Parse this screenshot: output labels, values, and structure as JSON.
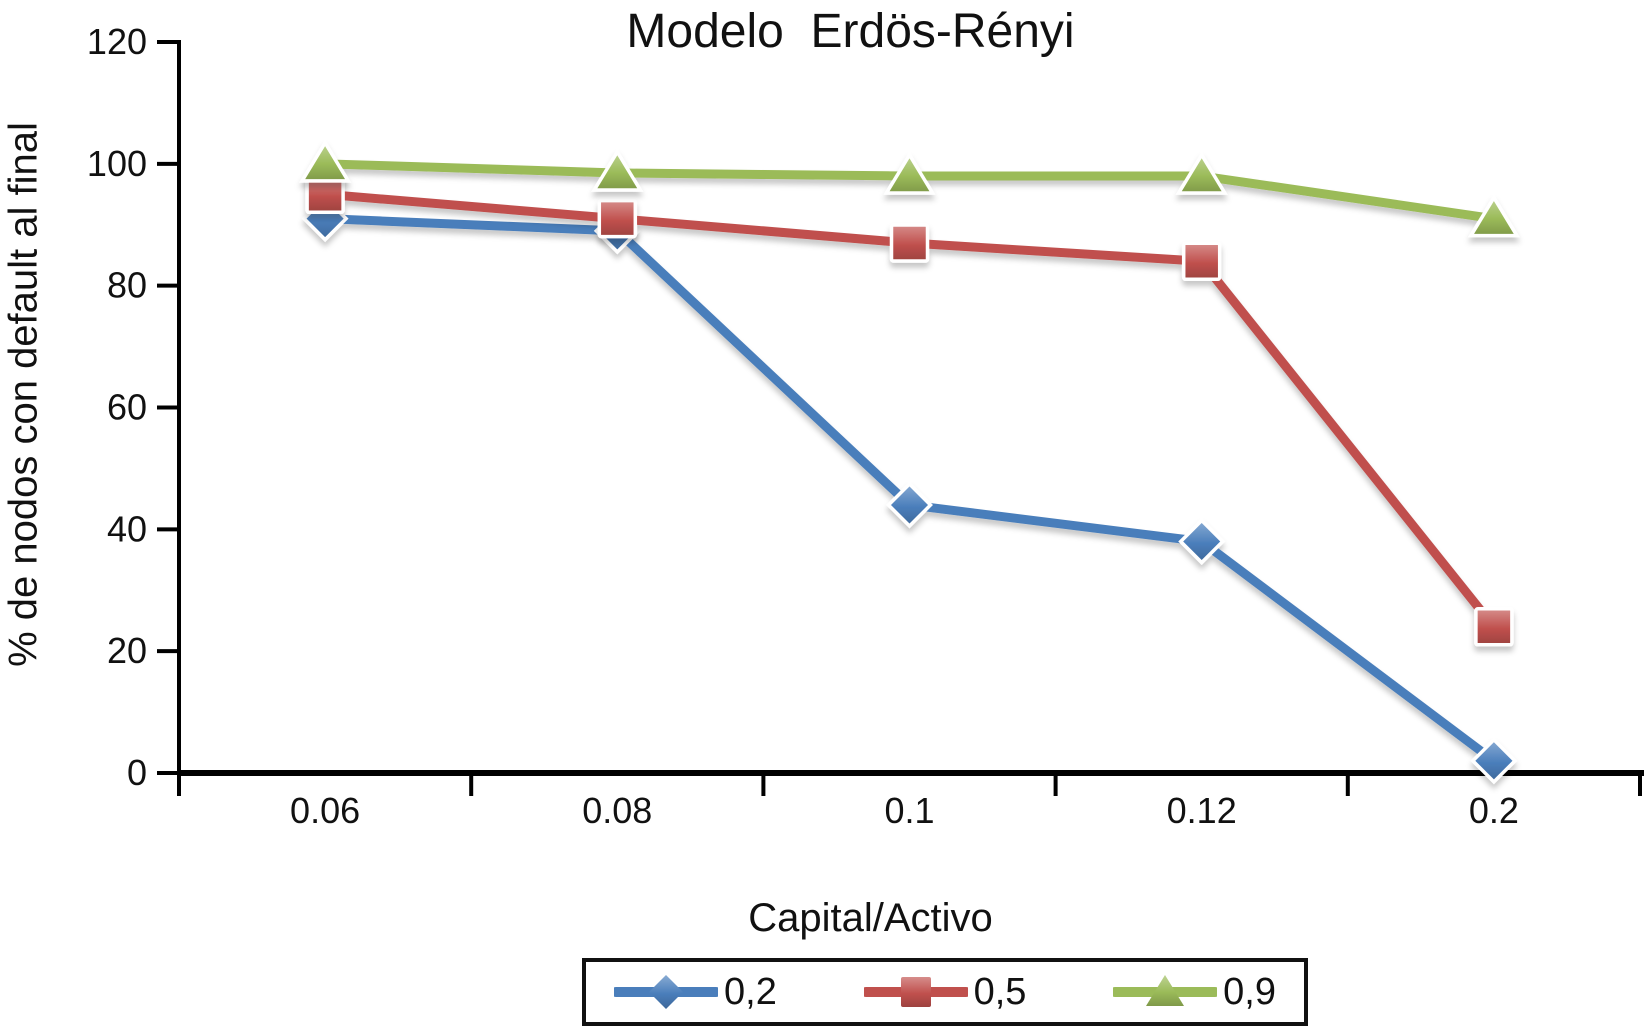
{
  "chart_data": {
    "type": "line",
    "title": "Modelo  Erdös-Rényi",
    "xlabel": "Capital/Activo",
    "ylabel": "% de nodos con default al final",
    "categories": [
      "0.06",
      "0.08",
      "0.1",
      "0.12",
      "0.2"
    ],
    "series": [
      {
        "name": "0,2",
        "marker": "diamond",
        "color": "#4a7ebb",
        "values": [
          91,
          89,
          44,
          38,
          2
        ]
      },
      {
        "name": "0,5",
        "marker": "square",
        "color": "#c0504d",
        "values": [
          95,
          91,
          87,
          84,
          24
        ]
      },
      {
        "name": "0,9",
        "marker": "triangle",
        "color": "#9bbb59",
        "values": [
          100,
          98.5,
          98,
          98,
          91
        ]
      }
    ],
    "ylim": [
      0,
      120
    ],
    "yticks": [
      "0",
      "20",
      "40",
      "60",
      "80",
      "100",
      "120"
    ],
    "grid": false,
    "legend_position": "bottom",
    "axis_color": "#000000",
    "text_color": "#111111"
  }
}
